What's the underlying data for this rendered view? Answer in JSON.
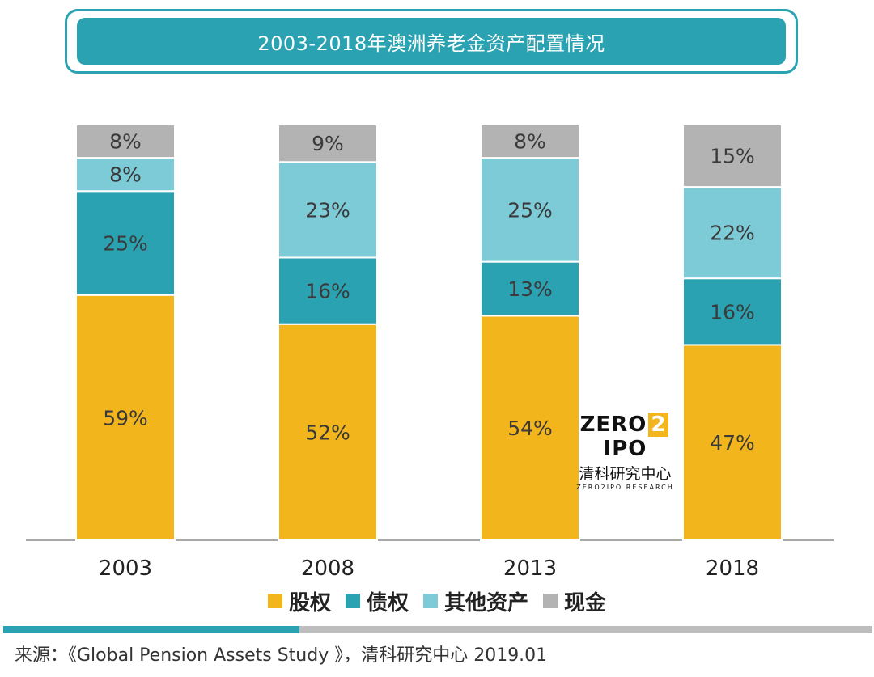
{
  "title": "2003-2018年澳洲养老金资产配置情况",
  "chart_data": {
    "type": "bar",
    "stacked": true,
    "categories": [
      "2003",
      "2008",
      "2013",
      "2018"
    ],
    "series": [
      {
        "name": "股权",
        "color": "#f2b51c",
        "values": [
          59,
          52,
          54,
          47
        ],
        "labels": [
          "59%",
          "52%",
          "54%",
          "47%"
        ]
      },
      {
        "name": "债权",
        "color": "#2aa2b1",
        "values": [
          25,
          16,
          13,
          16
        ],
        "labels": [
          "25%",
          "16%",
          "13%",
          "16%"
        ]
      },
      {
        "name": "其他资产",
        "color": "#7ccbd7",
        "values": [
          8,
          23,
          25,
          22
        ],
        "labels": [
          "8%",
          "23%",
          "25%",
          "22%"
        ]
      },
      {
        "name": "现金",
        "color": "#b3b3b4",
        "values": [
          8,
          9,
          8,
          15
        ],
        "labels": [
          "8%",
          "9%",
          "8%",
          "15%"
        ]
      }
    ],
    "ylim": [
      0,
      100
    ],
    "legend_position": "bottom-center"
  },
  "legend": {
    "items": [
      "股权",
      "债权",
      "其他资产",
      "现金"
    ]
  },
  "logo": {
    "main_left": "ZERO",
    "main_mid": "2",
    "main_right": "IPO",
    "cn": "清科研究中心",
    "sub": "ZERO2IPO RESEARCH"
  },
  "source": "来源：《Global Pension Assets Study 》，清科研究中心 2019.01"
}
